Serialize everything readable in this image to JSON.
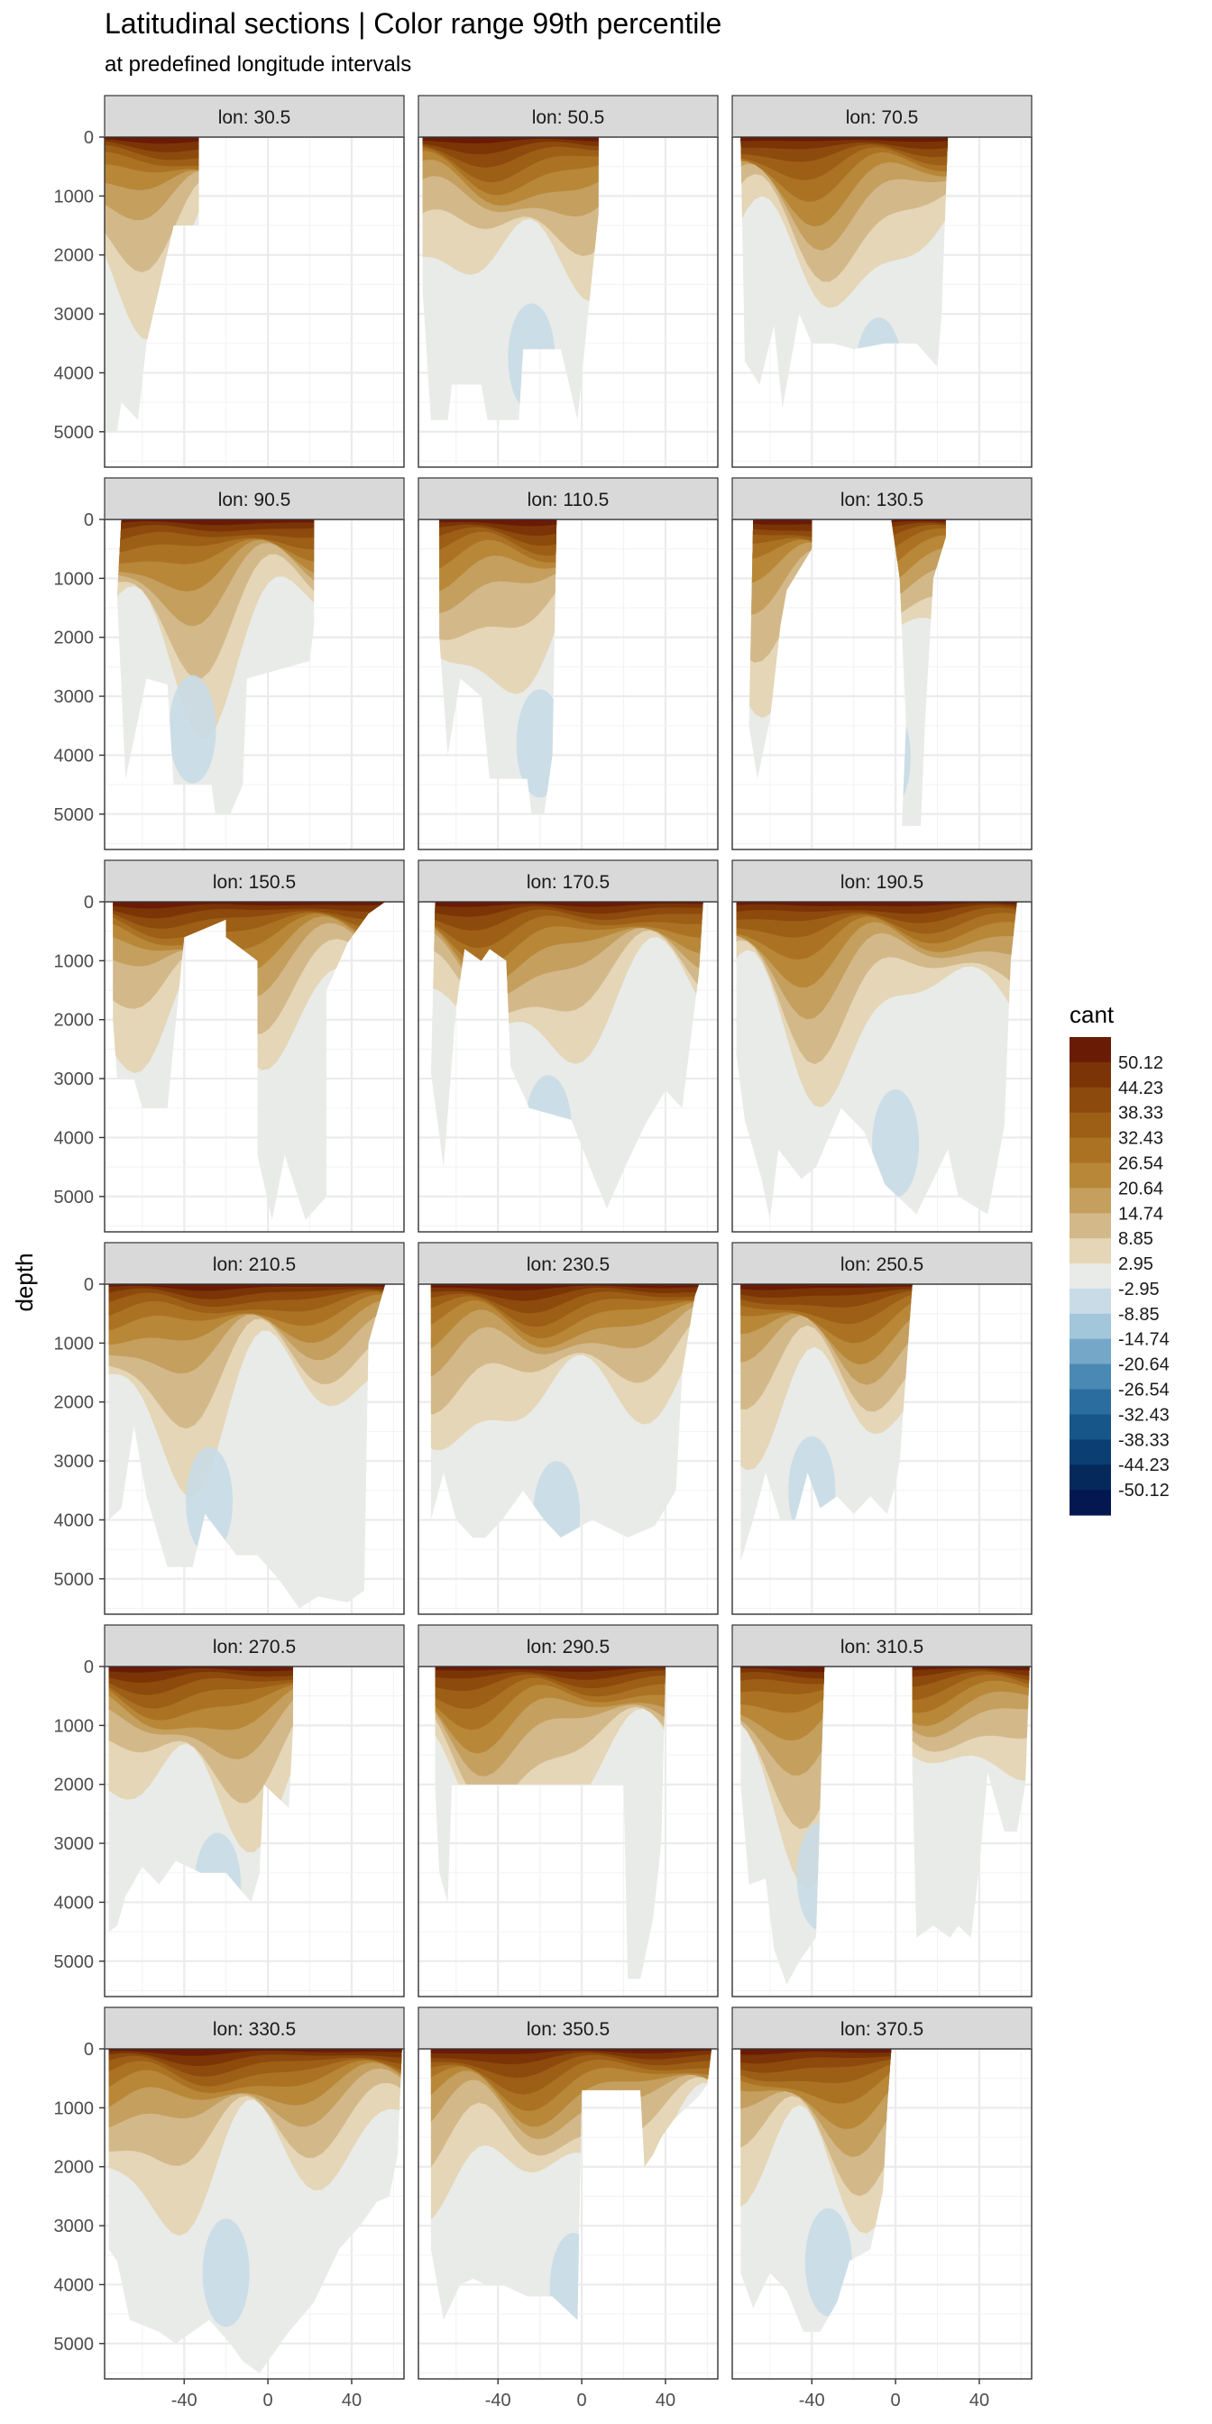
{
  "chart_data": {
    "type": "heatmap",
    "title": "Latitudinal sections | Color range 99th percentile",
    "subtitle": "at predefined longitude intervals",
    "ylabel": "depth",
    "xlabel": "",
    "x_ticks": [
      -40,
      0,
      40
    ],
    "y_ticks": [
      0,
      1000,
      2000,
      3000,
      4000,
      5000
    ],
    "xlim": [
      -78,
      65
    ],
    "ylim": [
      0,
      5600
    ],
    "grid": true,
    "legend_title": "cant",
    "legend_position": "right",
    "legend_labels": [
      "50.12",
      "44.23",
      "38.33",
      "32.43",
      "26.54",
      "20.64",
      "14.74",
      "8.85",
      "2.95",
      "-2.95",
      "-8.85",
      "-14.74",
      "-20.64",
      "-26.54",
      "-32.43",
      "-38.33",
      "-44.23",
      "-50.12"
    ],
    "legend_colors": [
      "#6a1b06",
      "#7b3406",
      "#8c4a0c",
      "#9d5e16",
      "#ab7224",
      "#b88738",
      "#c49f5e",
      "#d3b88a",
      "#e4d6b6",
      "#e9ebe8",
      "#c8dbe6",
      "#a2c6da",
      "#75a8c8",
      "#4a89b3",
      "#2b6d9f",
      "#175689",
      "#0b3f73",
      "#06295c",
      "#041751"
    ],
    "panels": [
      {
        "label": "lon: 30.5",
        "extent": [
          [
            -78,
            0
          ],
          [
            -78,
            5000
          ],
          [
            -72,
            5000
          ],
          [
            -70,
            4500
          ],
          [
            -62,
            4800
          ],
          [
            -58,
            3500
          ],
          [
            -45,
            1500
          ],
          [
            -33,
            1500
          ],
          [
            -33,
            0
          ]
        ]
      },
      {
        "label": "lon: 50.5",
        "extent": [
          [
            -76,
            0
          ],
          [
            -76,
            2600
          ],
          [
            -72,
            4800
          ],
          [
            -64,
            4800
          ],
          [
            -62,
            4200
          ],
          [
            -48,
            4200
          ],
          [
            -45,
            4800
          ],
          [
            -30,
            4800
          ],
          [
            -28,
            3600
          ],
          [
            -10,
            3600
          ],
          [
            -2,
            4800
          ],
          [
            3,
            3000
          ],
          [
            8,
            1300
          ],
          [
            8,
            0
          ]
        ]
      },
      {
        "label": "lon: 70.5",
        "extent": [
          [
            -74,
            0
          ],
          [
            -72,
            3800
          ],
          [
            -65,
            4200
          ],
          [
            -58,
            3200
          ],
          [
            -54,
            4600
          ],
          [
            -46,
            3000
          ],
          [
            -40,
            3500
          ],
          [
            -30,
            3500
          ],
          [
            -20,
            3600
          ],
          [
            -5,
            3500
          ],
          [
            10,
            3500
          ],
          [
            20,
            3900
          ],
          [
            22,
            3000
          ],
          [
            25,
            0
          ]
        ]
      },
      {
        "label": "lon: 90.5",
        "extent": [
          [
            -70,
            0
          ],
          [
            -72,
            1300
          ],
          [
            -68,
            4400
          ],
          [
            -62,
            3400
          ],
          [
            -58,
            2700
          ],
          [
            -48,
            2800
          ],
          [
            -45,
            4500
          ],
          [
            -27,
            4500
          ],
          [
            -25,
            5000
          ],
          [
            -18,
            5000
          ],
          [
            -12,
            4500
          ],
          [
            -10,
            2700
          ],
          [
            20,
            2400
          ],
          [
            22,
            1800
          ],
          [
            22,
            0
          ]
        ]
      },
      {
        "label": "lon: 110.5",
        "extent": [
          [
            -68,
            0
          ],
          [
            -68,
            2000
          ],
          [
            -64,
            4000
          ],
          [
            -58,
            2700
          ],
          [
            -48,
            3000
          ],
          [
            -44,
            4400
          ],
          [
            -26,
            4400
          ],
          [
            -24,
            5000
          ],
          [
            -18,
            5000
          ],
          [
            -14,
            4000
          ],
          [
            -12,
            0
          ]
        ]
      },
      {
        "label": "lon: 130.5",
        "extent": [
          [
            -68,
            0
          ],
          [
            -70,
            3500
          ],
          [
            -66,
            4400
          ],
          [
            -60,
            3400
          ],
          [
            -55,
            1800
          ],
          [
            -52,
            1200
          ],
          [
            -40,
            500
          ],
          [
            -40,
            0
          ]
        ],
        "extent2": [
          [
            -2,
            0
          ],
          [
            2,
            1000
          ],
          [
            5,
            3500
          ],
          [
            3,
            5200
          ],
          [
            12,
            5200
          ],
          [
            14,
            3500
          ],
          [
            18,
            1000
          ],
          [
            24,
            300
          ],
          [
            24,
            0
          ]
        ]
      },
      {
        "label": "lon: 150.5",
        "extent": [
          [
            -74,
            0
          ],
          [
            -74,
            2000
          ],
          [
            -72,
            3000
          ],
          [
            -64,
            3000
          ],
          [
            -60,
            3500
          ],
          [
            -48,
            3500
          ],
          [
            -40,
            600
          ],
          [
            -20,
            300
          ],
          [
            -20,
            600
          ],
          [
            -5,
            1000
          ],
          [
            -5,
            4300
          ],
          [
            2,
            5400
          ],
          [
            8,
            4300
          ],
          [
            18,
            5400
          ],
          [
            28,
            5000
          ],
          [
            28,
            1500
          ],
          [
            38,
            700
          ],
          [
            48,
            200
          ],
          [
            56,
            0
          ]
        ]
      },
      {
        "label": "lon: 170.5",
        "extent": [
          [
            -70,
            0
          ],
          [
            -72,
            2900
          ],
          [
            -66,
            4500
          ],
          [
            -60,
            1800
          ],
          [
            -56,
            800
          ],
          [
            -48,
            1000
          ],
          [
            -44,
            800
          ],
          [
            -36,
            1000
          ],
          [
            -34,
            2800
          ],
          [
            -25,
            3500
          ],
          [
            -5,
            3700
          ],
          [
            5,
            4600
          ],
          [
            12,
            5200
          ],
          [
            22,
            4400
          ],
          [
            30,
            3800
          ],
          [
            40,
            3200
          ],
          [
            48,
            3500
          ],
          [
            56,
            1200
          ],
          [
            58,
            0
          ]
        ]
      },
      {
        "label": "lon: 190.5",
        "extent": [
          [
            -76,
            0
          ],
          [
            -76,
            2600
          ],
          [
            -72,
            3700
          ],
          [
            -64,
            4700
          ],
          [
            -60,
            5400
          ],
          [
            -56,
            4200
          ],
          [
            -45,
            4700
          ],
          [
            -38,
            4500
          ],
          [
            -26,
            3500
          ],
          [
            -15,
            3900
          ],
          [
            -5,
            4800
          ],
          [
            10,
            5300
          ],
          [
            25,
            4200
          ],
          [
            30,
            5000
          ],
          [
            44,
            5300
          ],
          [
            52,
            3800
          ],
          [
            55,
            1000
          ],
          [
            58,
            0
          ]
        ]
      },
      {
        "label": "lon: 210.5",
        "extent": [
          [
            -76,
            0
          ],
          [
            -76,
            4000
          ],
          [
            -70,
            3800
          ],
          [
            -64,
            2400
          ],
          [
            -58,
            3600
          ],
          [
            -48,
            4800
          ],
          [
            -36,
            4800
          ],
          [
            -30,
            3900
          ],
          [
            -15,
            4600
          ],
          [
            -5,
            4600
          ],
          [
            5,
            5000
          ],
          [
            15,
            5500
          ],
          [
            24,
            5300
          ],
          [
            38,
            5400
          ],
          [
            46,
            5200
          ],
          [
            48,
            1000
          ],
          [
            56,
            0
          ]
        ]
      },
      {
        "label": "lon: 230.5",
        "extent": [
          [
            -72,
            0
          ],
          [
            -72,
            4000
          ],
          [
            -66,
            3200
          ],
          [
            -60,
            4000
          ],
          [
            -52,
            4300
          ],
          [
            -46,
            4300
          ],
          [
            -38,
            4000
          ],
          [
            -28,
            3500
          ],
          [
            -18,
            4000
          ],
          [
            -10,
            4300
          ],
          [
            5,
            4000
          ],
          [
            22,
            4300
          ],
          [
            35,
            4100
          ],
          [
            45,
            3500
          ],
          [
            48,
            1500
          ],
          [
            54,
            200
          ],
          [
            56,
            0
          ]
        ]
      },
      {
        "label": "lon: 250.5",
        "extent": [
          [
            -74,
            0
          ],
          [
            -74,
            4700
          ],
          [
            -68,
            4000
          ],
          [
            -62,
            3200
          ],
          [
            -55,
            4000
          ],
          [
            -48,
            4000
          ],
          [
            -42,
            3200
          ],
          [
            -36,
            3800
          ],
          [
            -28,
            3600
          ],
          [
            -20,
            3900
          ],
          [
            -12,
            3600
          ],
          [
            -4,
            3900
          ],
          [
            0,
            3400
          ],
          [
            2,
            3000
          ],
          [
            8,
            0
          ]
        ]
      },
      {
        "label": "lon: 270.5",
        "extent": [
          [
            -76,
            0
          ],
          [
            -76,
            4500
          ],
          [
            -72,
            4400
          ],
          [
            -68,
            3900
          ],
          [
            -60,
            3400
          ],
          [
            -52,
            3700
          ],
          [
            -44,
            3300
          ],
          [
            -32,
            3500
          ],
          [
            -20,
            3500
          ],
          [
            -8,
            4000
          ],
          [
            -4,
            3500
          ],
          [
            -2,
            2000
          ],
          [
            10,
            2400
          ],
          [
            12,
            1000
          ],
          [
            12,
            0
          ]
        ]
      },
      {
        "label": "lon: 290.5",
        "extent": [
          [
            -70,
            0
          ],
          [
            -70,
            2100
          ],
          [
            -68,
            3500
          ],
          [
            -64,
            4000
          ],
          [
            -62,
            2000
          ],
          [
            20,
            2000
          ],
          [
            22,
            5300
          ],
          [
            28,
            5300
          ],
          [
            34,
            4300
          ],
          [
            38,
            3000
          ],
          [
            40,
            0
          ]
        ]
      },
      {
        "label": "lon: 310.5",
        "extent": [
          [
            -74,
            0
          ],
          [
            -74,
            2000
          ],
          [
            -70,
            3700
          ],
          [
            -62,
            3600
          ],
          [
            -58,
            4800
          ],
          [
            -52,
            5400
          ],
          [
            -46,
            5000
          ],
          [
            -38,
            4600
          ],
          [
            -34,
            0
          ]
        ],
        "extent2": [
          [
            8,
            0
          ],
          [
            8,
            1800
          ],
          [
            10,
            4600
          ],
          [
            18,
            4400
          ],
          [
            26,
            4600
          ],
          [
            30,
            4400
          ],
          [
            36,
            4600
          ],
          [
            40,
            3400
          ],
          [
            44,
            1800
          ],
          [
            52,
            2800
          ],
          [
            58,
            2800
          ],
          [
            62,
            2000
          ],
          [
            64,
            0
          ]
        ]
      },
      {
        "label": "lon: 330.5",
        "extent": [
          [
            -76,
            0
          ],
          [
            -76,
            3400
          ],
          [
            -72,
            3600
          ],
          [
            -66,
            4600
          ],
          [
            -52,
            4800
          ],
          [
            -44,
            5000
          ],
          [
            -28,
            4600
          ],
          [
            -18,
            5000
          ],
          [
            -12,
            5300
          ],
          [
            -4,
            5500
          ],
          [
            10,
            4800
          ],
          [
            22,
            4300
          ],
          [
            34,
            3400
          ],
          [
            44,
            3000
          ],
          [
            52,
            2600
          ],
          [
            58,
            2500
          ],
          [
            62,
            1800
          ],
          [
            64,
            0
          ]
        ]
      },
      {
        "label": "lon: 350.5",
        "extent": [
          [
            -72,
            0
          ],
          [
            -72,
            3400
          ],
          [
            -66,
            4600
          ],
          [
            -58,
            4000
          ],
          [
            -52,
            3900
          ],
          [
            -46,
            4000
          ],
          [
            -38,
            4000
          ],
          [
            -26,
            4200
          ],
          [
            -14,
            4200
          ],
          [
            -2,
            4600
          ],
          [
            0,
            700
          ],
          [
            28,
            700
          ],
          [
            30,
            2000
          ],
          [
            34,
            1800
          ],
          [
            38,
            1500
          ],
          [
            44,
            1200
          ],
          [
            50,
            1000
          ],
          [
            56,
            800
          ],
          [
            60,
            600
          ],
          [
            62,
            0
          ]
        ]
      },
      {
        "label": "lon: 370.5",
        "extent": [
          [
            -74,
            0
          ],
          [
            -74,
            3800
          ],
          [
            -68,
            4400
          ],
          [
            -60,
            3800
          ],
          [
            -52,
            4100
          ],
          [
            -44,
            4800
          ],
          [
            -36,
            4800
          ],
          [
            -28,
            4300
          ],
          [
            -22,
            3600
          ],
          [
            -12,
            3400
          ],
          [
            -6,
            2400
          ],
          [
            -4,
            1000
          ],
          [
            -2,
            0
          ]
        ]
      }
    ]
  }
}
